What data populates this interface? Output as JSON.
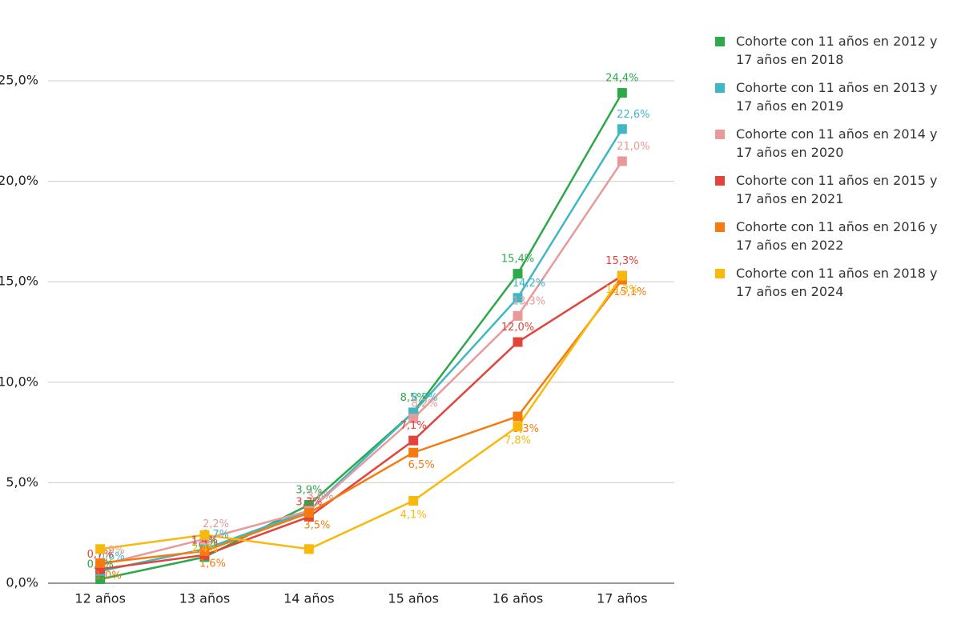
{
  "chart_data": {
    "type": "line",
    "categories": [
      "12 años",
      "13 años",
      "14 años",
      "15 años",
      "16 años",
      "17 años"
    ],
    "ylim": [
      0,
      25
    ],
    "yticks": [
      {
        "value": 0,
        "label": "0,0%"
      },
      {
        "value": 5,
        "label": "5,0%"
      },
      {
        "value": 10,
        "label": "10,0%"
      },
      {
        "value": 15,
        "label": "15,0%"
      },
      {
        "value": 20,
        "label": "20,0%"
      },
      {
        "value": 25,
        "label": "25,0%"
      }
    ],
    "grid": true,
    "legend": "right",
    "series": [
      {
        "name": "Cohorte con 11 años en 2012 y 17 años en 2018",
        "color": "#2ea84a",
        "values": [
          0.2,
          1.3,
          3.9,
          8.5,
          15.4,
          24.4
        ],
        "value_labels": [
          "0,2%",
          "1,3%",
          "3,9%",
          "8,5%",
          "15,4%",
          "24,4%"
        ]
      },
      {
        "name": "Cohorte con 11 años en 2013 y 17 años en 2019",
        "color": "#3fb8c4",
        "values": [
          0.6,
          1.7,
          3.6,
          8.5,
          14.2,
          22.6
        ],
        "value_labels": [
          "0,6%",
          "1,7%",
          "3,6%",
          "8,5%",
          "14,2%",
          "22,6%"
        ]
      },
      {
        "name": "Cohorte con 11 años en 2014 y 17 años en 2020",
        "color": "#e89a9a",
        "values": [
          0.9,
          2.2,
          3.6,
          8.2,
          13.3,
          21.0
        ],
        "value_labels": [
          "0,9%",
          "2,2%",
          "3,6%",
          "8,2%",
          "13,3%",
          "21,0%"
        ]
      },
      {
        "name": "Cohorte con 11 años en 2015 y 17 años en 2021",
        "color": "#e0443a",
        "values": [
          0.7,
          1.4,
          3.3,
          7.1,
          12.0,
          15.3
        ],
        "value_labels": [
          "0,7%",
          "1,4%",
          "3,3%",
          "7,1%",
          "12,0%",
          "15,3%"
        ]
      },
      {
        "name": "Cohorte con 11 años en 2016 y 17 años en 2022",
        "color": "#f57a10",
        "values": [
          1.0,
          1.6,
          3.5,
          6.5,
          8.3,
          15.1
        ],
        "value_labels": [
          "1,0%",
          "1,6%",
          "3,5%",
          "6,5%",
          "8,3%",
          "15,1%"
        ]
      },
      {
        "name": "Cohorte con 11 años en 2018 y 17 años en 2024",
        "color": "#f8b90c",
        "values": [
          1.7,
          2.4,
          1.7,
          4.1,
          7.8,
          15.3
        ],
        "value_labels": [
          null,
          "2,4%",
          null,
          "4,1%",
          "7,8%",
          "15,3%"
        ]
      }
    ]
  }
}
